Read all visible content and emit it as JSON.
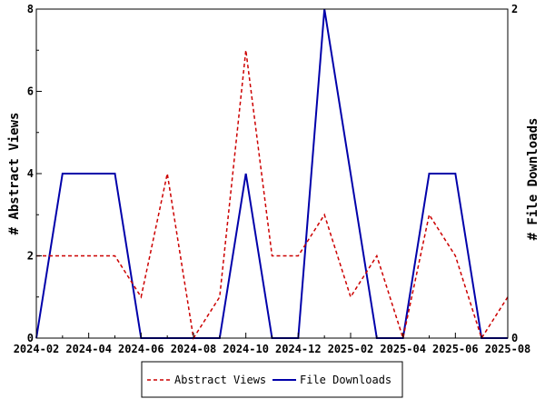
{
  "chart_data": {
    "type": "line",
    "title": "",
    "x": [
      "2024-02",
      "2024-03",
      "2024-04",
      "2024-05",
      "2024-06",
      "2024-07",
      "2024-08",
      "2024-09",
      "2024-10",
      "2024-11",
      "2024-12",
      "2025-01",
      "2025-02",
      "2025-03",
      "2025-04",
      "2025-05",
      "2025-06",
      "2025-07",
      "2025-08"
    ],
    "x_ticks": [
      "2024-02",
      "2024-04",
      "2024-06",
      "2024-08",
      "2024-10",
      "2024-12",
      "2025-02",
      "2025-04",
      "2025-06",
      "2025-08"
    ],
    "left_axis": {
      "label": "# Abstract Views",
      "range": [
        0,
        8
      ],
      "ticks": [
        0,
        2,
        4,
        6,
        8
      ]
    },
    "right_axis": {
      "label": "# File Downloads",
      "range": [
        0,
        2
      ],
      "ticks": [
        0,
        2
      ]
    },
    "grid": false,
    "legend_position": "bottom",
    "series": [
      {
        "name": "Abstract Views",
        "axis": "left",
        "color": "#cc0000",
        "style": "dashed",
        "values": [
          2,
          2,
          2,
          2,
          1,
          4,
          0,
          1,
          7,
          2,
          2,
          3,
          1,
          2,
          0,
          3,
          2,
          0,
          1
        ]
      },
      {
        "name": "File Downloads",
        "axis": "right",
        "color": "#0000aa",
        "style": "solid",
        "values": [
          0,
          1,
          1,
          1,
          0,
          0,
          0,
          0,
          1,
          0,
          0,
          2,
          1,
          0,
          0,
          1,
          1,
          0,
          0
        ]
      }
    ]
  }
}
